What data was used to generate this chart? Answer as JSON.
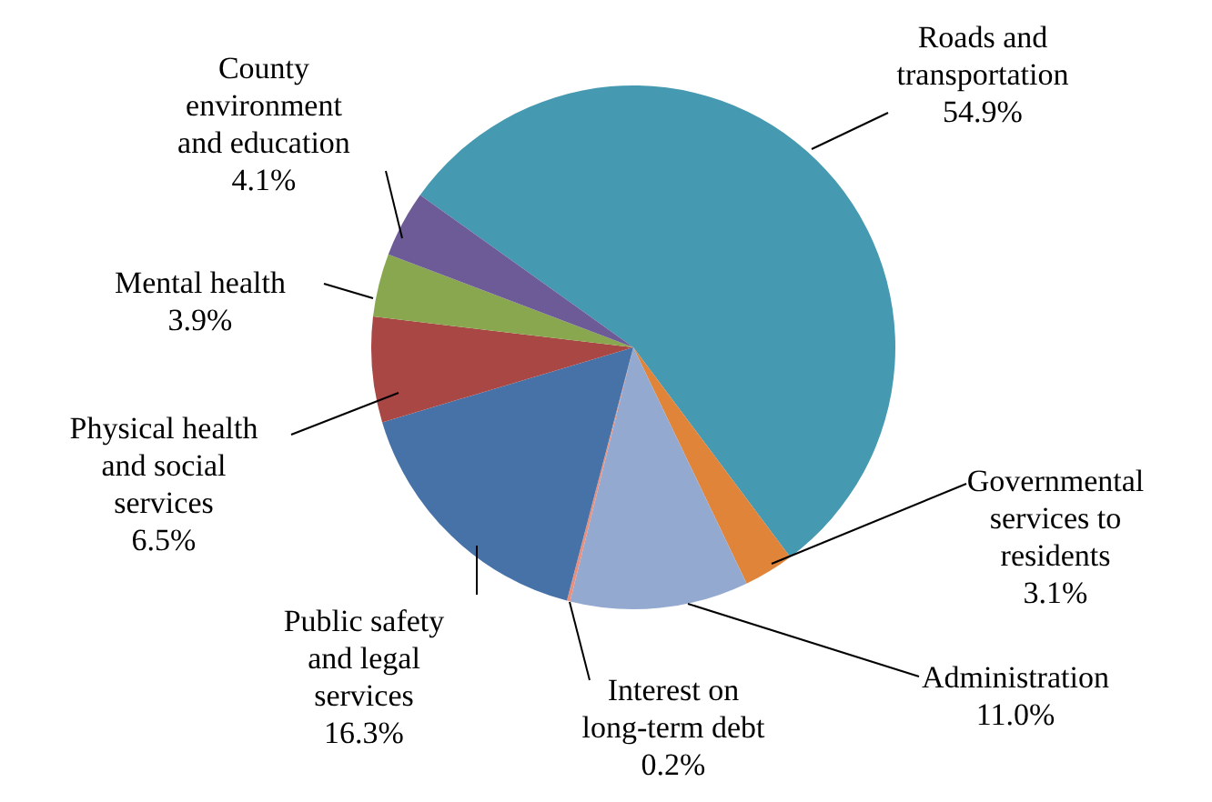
{
  "chart_data": {
    "type": "pie",
    "categories": [
      "Roads and transportation",
      "Governmental services to residents",
      "Administration",
      "Interest on long-term debt",
      "Public safety and legal services",
      "Physical health and social services",
      "Mental health",
      "County environment and education"
    ],
    "values": [
      54.9,
      3.1,
      11.0,
      0.2,
      16.3,
      6.5,
      3.9,
      4.1
    ],
    "colors": [
      "#4599b1",
      "#e0843a",
      "#93a9d0",
      "#e88f7e",
      "#4672a8",
      "#a84744",
      "#89a74f",
      "#6c5b96"
    ],
    "value_labels": [
      "54.9%",
      "3.1%",
      "11.0%",
      "0.2%",
      "16.3%",
      "6.5%",
      "3.9%",
      "4.1%"
    ]
  }
}
